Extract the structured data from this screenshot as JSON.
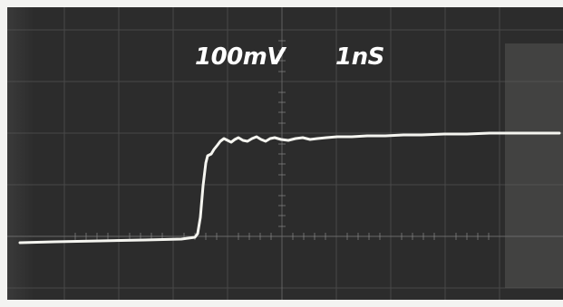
{
  "scope": {
    "vertical_scale": "100mV",
    "time_base": "1nS"
  },
  "colors": {
    "screen": "#2c2c2c",
    "grid": "#6b6b6b",
    "trace": "#f5f5f0",
    "paper": "#f3f3f1"
  },
  "icons": {
    "waveform": "step-response-trace"
  }
}
